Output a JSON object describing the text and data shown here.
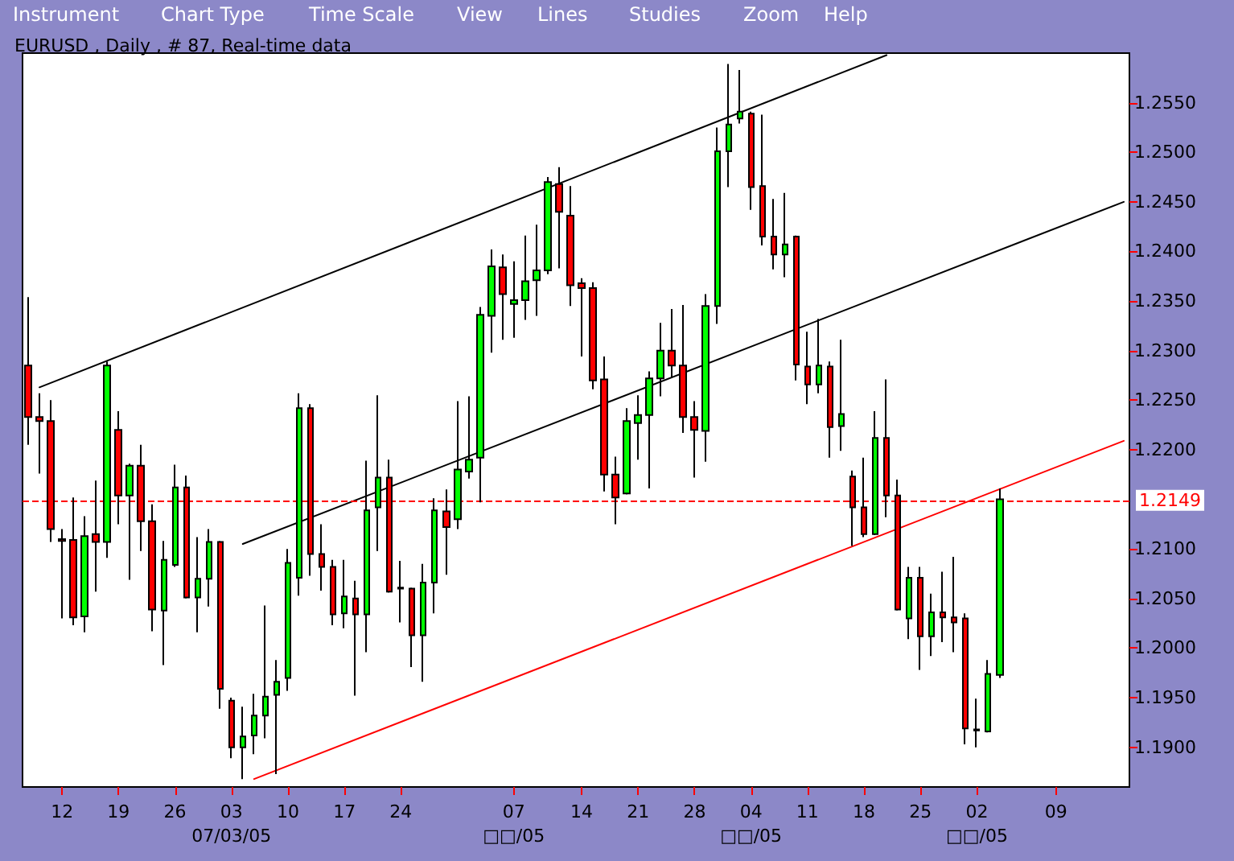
{
  "chart_data": {
    "type": "candlestick",
    "title": "EURUSD , Daily , # 87, Real-time data",
    "annotations": [
      "Instrument",
      "Chart Type",
      "Time Scale",
      "View",
      "Lines",
      "Studies",
      "Zoom",
      "Help"
    ],
    "categories": [
      null,
      null,
      null,
      "12",
      null,
      null,
      null,
      null,
      "19",
      null,
      null,
      null,
      null,
      "26",
      null,
      null,
      null,
      null,
      "03\n07/03/05",
      null,
      null,
      null,
      null,
      "10",
      null,
      null,
      null,
      null,
      "17",
      null,
      null,
      null,
      null,
      "24",
      null,
      null,
      null,
      null,
      null,
      null,
      null,
      null,
      null,
      "07\n□□/05",
      null,
      null,
      null,
      null,
      null,
      "14",
      null,
      null,
      null,
      null,
      "21",
      null,
      null,
      null,
      null,
      "28",
      null,
      null,
      null,
      null,
      "04\n□□/05",
      null,
      null,
      null,
      null,
      "11",
      null,
      null,
      null,
      null,
      "18",
      null,
      null,
      null,
      null,
      "25",
      null,
      null,
      null,
      null,
      "02\n□□/05",
      null,
      null,
      null,
      null,
      null,
      null,
      "09",
      null,
      null,
      null,
      null,
      null,
      null
    ],
    "ohlc": [
      [
        1.2285,
        1.2354,
        1.2205,
        1.2233
      ],
      [
        1.2233,
        1.2257,
        1.2176,
        1.2229
      ],
      [
        1.2229,
        1.225,
        1.2107,
        1.212
      ],
      [
        1.211,
        1.212,
        1.203,
        1.2108
      ],
      [
        1.2109,
        1.2152,
        1.2023,
        1.2031
      ],
      [
        1.2032,
        1.2133,
        1.2016,
        1.2113
      ],
      [
        1.2115,
        1.2169,
        1.2057,
        1.2107
      ],
      [
        1.2107,
        1.2289,
        1.2091,
        1.2285
      ],
      [
        1.222,
        1.2239,
        1.2125,
        1.2154
      ],
      [
        1.2154,
        1.2186,
        1.2069,
        1.2184
      ],
      [
        1.2184,
        1.2205,
        1.2098,
        1.2128
      ],
      [
        1.2128,
        1.2145,
        1.2017,
        1.2039
      ],
      [
        1.2038,
        1.2108,
        1.1983,
        1.2089
      ],
      [
        1.2084,
        1.2185,
        1.2082,
        1.2162
      ],
      [
        1.2162,
        1.2174,
        1.205,
        1.2051
      ],
      [
        1.2051,
        1.2112,
        1.2016,
        1.207
      ],
      [
        1.207,
        1.212,
        1.2042,
        1.2107
      ],
      [
        1.2107,
        1.2108,
        1.1939,
        1.1959
      ],
      [
        1.1947,
        1.195,
        1.1889,
        1.19
      ],
      [
        1.19,
        1.1941,
        1.1868,
        1.1911
      ],
      [
        1.1912,
        1.1954,
        1.1893,
        1.1932
      ],
      [
        1.1932,
        1.2043,
        1.1909,
        1.1951
      ],
      [
        1.1953,
        1.1988,
        1.1873,
        1.1966
      ],
      [
        1.197,
        1.21,
        1.1957,
        1.2086
      ],
      [
        1.2071,
        1.2257,
        1.2053,
        1.2242
      ],
      [
        1.2242,
        1.2246,
        1.2073,
        1.2095
      ],
      [
        1.2095,
        1.2125,
        1.2058,
        1.2082
      ],
      [
        1.2082,
        1.2089,
        1.2023,
        1.2034
      ],
      [
        1.2035,
        1.2089,
        1.202,
        1.2052
      ],
      [
        1.205,
        1.2068,
        1.1952,
        1.2034
      ],
      [
        1.2034,
        1.2189,
        1.1996,
        1.2139
      ],
      [
        1.2142,
        1.2255,
        1.2098,
        1.2172
      ],
      [
        1.2172,
        1.219,
        1.2056,
        1.2057
      ],
      [
        1.2061,
        1.2088,
        1.2026,
        1.206
      ],
      [
        1.206,
        1.2061,
        1.1981,
        1.2013
      ],
      [
        1.2013,
        1.2085,
        1.1966,
        1.2066
      ],
      [
        1.2066,
        1.2151,
        1.2035,
        1.2139
      ],
      [
        1.2138,
        1.216,
        1.2074,
        1.2122
      ],
      [
        1.213,
        1.2249,
        1.212,
        1.218
      ],
      [
        1.2178,
        1.2254,
        1.2171,
        1.219
      ],
      [
        1.2192,
        1.2344,
        1.2147,
        1.2336
      ],
      [
        1.2335,
        1.2402,
        1.2298,
        1.2385
      ],
      [
        1.2384,
        1.2397,
        1.2311,
        1.2357
      ],
      [
        1.2347,
        1.239,
        1.2313,
        1.2351
      ],
      [
        1.2351,
        1.2416,
        1.2331,
        1.237
      ],
      [
        1.2371,
        1.2427,
        1.2335,
        1.2381
      ],
      [
        1.2381,
        1.2475,
        1.2377,
        1.247
      ],
      [
        1.2468,
        1.2485,
        1.2383,
        1.244
      ],
      [
        1.2436,
        1.2466,
        1.2345,
        1.2366
      ],
      [
        1.2368,
        1.2373,
        1.2294,
        1.2363
      ],
      [
        1.2363,
        1.2369,
        1.2261,
        1.227
      ],
      [
        1.2271,
        1.2294,
        1.2158,
        1.2175
      ],
      [
        1.2175,
        1.2193,
        1.2125,
        1.2152
      ],
      [
        1.2156,
        1.2242,
        1.2155,
        1.2229
      ],
      [
        1.2227,
        1.2255,
        1.219,
        1.2235
      ],
      [
        1.2235,
        1.2279,
        1.2161,
        1.2272
      ],
      [
        1.2272,
        1.2328,
        1.2254,
        1.23
      ],
      [
        1.23,
        1.2342,
        1.2273,
        1.2285
      ],
      [
        1.2285,
        1.2346,
        1.2217,
        1.2233
      ],
      [
        1.2233,
        1.2249,
        1.2172,
        1.222
      ],
      [
        1.2219,
        1.2357,
        1.2188,
        1.2345
      ],
      [
        1.2345,
        1.2525,
        1.2327,
        1.2501
      ],
      [
        1.2501,
        1.2589,
        1.2465,
        1.2528
      ],
      [
        1.2534,
        1.2583,
        1.2529,
        1.2541
      ],
      [
        1.2539,
        1.2541,
        1.2442,
        1.2465
      ],
      [
        1.2466,
        1.2538,
        1.2406,
        1.2415
      ],
      [
        1.2415,
        1.2453,
        1.2382,
        1.2397
      ],
      [
        1.2397,
        1.2459,
        1.2374,
        1.2407
      ],
      [
        1.2415,
        1.2416,
        1.227,
        1.2286
      ],
      [
        1.2284,
        1.2319,
        1.2246,
        1.2266
      ],
      [
        1.2266,
        1.2332,
        1.2257,
        1.2285
      ],
      [
        1.2284,
        1.2289,
        1.2192,
        1.2223
      ],
      [
        1.2224,
        1.2311,
        1.2199,
        1.2236
      ],
      [
        1.2173,
        1.2179,
        1.2103,
        1.2142
      ],
      [
        1.2142,
        1.2192,
        1.2112,
        1.2115
      ],
      [
        1.2115,
        1.2239,
        1.2114,
        1.2212
      ],
      [
        1.2212,
        1.2271,
        1.2132,
        1.2154
      ],
      [
        1.2154,
        1.217,
        1.2038,
        1.2039
      ],
      [
        1.203,
        1.2082,
        1.2009,
        1.2071
      ],
      [
        1.2071,
        1.2082,
        1.1978,
        1.2012
      ],
      [
        1.2012,
        1.2055,
        1.1992,
        1.2036
      ],
      [
        1.2036,
        1.2077,
        1.2006,
        1.2031
      ],
      [
        1.2031,
        1.2092,
        1.1996,
        1.2026
      ],
      [
        1.203,
        1.2035,
        1.1903,
        1.1919
      ],
      [
        1.1918,
        1.1949,
        1.19,
        1.1917
      ],
      [
        1.1916,
        1.1988,
        1.1915,
        1.1974
      ],
      [
        1.1973,
        1.2161,
        1.197,
        1.215
      ],
      null,
      null,
      null,
      null,
      null,
      null,
      null,
      null,
      null,
      null,
      null
    ],
    "colors": [
      "#ff0000",
      "#ff0000",
      "#ff0000",
      "#ff0000",
      "#ff0000",
      "#00ff00",
      "#ff0000",
      "#00ff00",
      "#ff0000",
      "#00ff00",
      "#ff0000",
      "#ff0000",
      "#00ff00",
      "#00ff00",
      "#ff0000",
      "#00ff00",
      "#00ff00",
      "#ff0000",
      "#ff0000",
      "#00ff00",
      "#00ff00",
      "#00ff00",
      "#00ff00",
      "#00ff00",
      "#00ff00",
      "#ff0000",
      "#ff0000",
      "#ff0000",
      "#00ff00",
      "#ff0000",
      "#00ff00",
      "#00ff00",
      "#ff0000",
      "#ff0000",
      "#ff0000",
      "#00ff00",
      "#00ff00",
      "#ff0000",
      "#00ff00",
      "#00ff00",
      "#00ff00",
      "#00ff00",
      "#ff0000",
      "#00ff00",
      "#00ff00",
      "#00ff00",
      "#00ff00",
      "#ff0000",
      "#ff0000",
      "#ff0000",
      "#ff0000",
      "#ff0000",
      "#ff0000",
      "#00ff00",
      "#00ff00",
      "#00ff00",
      "#00ff00",
      "#ff0000",
      "#ff0000",
      "#ff0000",
      "#00ff00",
      "#00ff00",
      "#00ff00",
      "#00ff00",
      "#ff0000",
      "#ff0000",
      "#ff0000",
      "#00ff00",
      "#ff0000",
      "#ff0000",
      "#00ff00",
      "#ff0000",
      "#00ff00",
      "#ff0000",
      "#ff0000",
      "#00ff00",
      "#ff0000",
      "#ff0000",
      "#00ff00",
      "#ff0000",
      "#00ff00",
      "#ff0000",
      "#ff0000",
      "#ff0000",
      "#ff0000",
      "#00ff00",
      "#00ff00",
      null,
      null,
      null,
      null,
      null,
      null,
      null,
      null,
      null,
      null,
      null
    ],
    "series": [
      {
        "type": "line",
        "color": "#000000",
        "values": [
          null,
          1.2263,
          null,
          null,
          null,
          null,
          null,
          null,
          null,
          null,
          null,
          null,
          null,
          null,
          null,
          null,
          null,
          null,
          null,
          null,
          null,
          null,
          null,
          null,
          null,
          null,
          null,
          null,
          null,
          null,
          null,
          null,
          null,
          null,
          null,
          null,
          null,
          null,
          null,
          null,
          null,
          null,
          null,
          null,
          null,
          null,
          null,
          null,
          null,
          null,
          null,
          null,
          null,
          null,
          null,
          null,
          null,
          null,
          null,
          null,
          null,
          null,
          null,
          null,
          null,
          null,
          null,
          null,
          null,
          null,
          null,
          null,
          null,
          null,
          null,
          null,
          1.2598,
          null,
          null,
          null,
          null,
          null,
          null,
          null,
          null,
          null,
          null,
          null,
          null,
          null,
          null,
          null,
          null,
          null,
          null,
          null,
          null,
          null
        ]
      },
      {
        "type": "line",
        "color": "#000000",
        "values": [
          null,
          null,
          null,
          null,
          null,
          null,
          null,
          null,
          null,
          null,
          null,
          null,
          null,
          null,
          null,
          null,
          null,
          null,
          null,
          1.2105,
          null,
          null,
          null,
          null,
          null,
          null,
          null,
          null,
          null,
          null,
          null,
          null,
          null,
          null,
          null,
          null,
          null,
          null,
          null,
          null,
          null,
          null,
          null,
          null,
          null,
          null,
          null,
          null,
          null,
          null,
          null,
          null,
          null,
          null,
          null,
          null,
          null,
          null,
          null,
          null,
          null,
          null,
          null,
          null,
          null,
          null,
          null,
          null,
          null,
          null,
          null,
          null,
          null,
          null,
          null,
          null,
          null,
          null,
          null,
          null,
          null,
          null,
          null,
          null,
          null,
          null,
          null,
          null,
          null,
          null,
          null,
          null,
          null,
          null,
          null,
          null,
          null,
          1.245
        ]
      },
      {
        "type": "line",
        "color": "#ff0000",
        "values": [
          null,
          null,
          null,
          null,
          null,
          null,
          null,
          null,
          null,
          null,
          null,
          null,
          null,
          null,
          null,
          null,
          null,
          null,
          null,
          null,
          1.1868,
          null,
          null,
          null,
          null,
          null,
          null,
          null,
          null,
          null,
          null,
          null,
          null,
          null,
          null,
          null,
          null,
          null,
          null,
          null,
          null,
          null,
          null,
          null,
          null,
          null,
          null,
          null,
          null,
          null,
          null,
          null,
          null,
          null,
          null,
          null,
          null,
          null,
          null,
          null,
          null,
          null,
          null,
          null,
          null,
          null,
          null,
          null,
          null,
          null,
          null,
          null,
          null,
          null,
          null,
          null,
          null,
          null,
          null,
          null,
          null,
          null,
          null,
          null,
          null,
          null,
          null,
          null,
          null,
          null,
          null,
          null,
          null,
          null,
          null,
          null,
          null,
          1.2209
        ]
      }
    ],
    "marker": "none",
    "line_style": "solid",
    "ylim": [
      1.186,
      1.26
    ],
    "yticks": [
      {
        "value": 1.19,
        "label": "1.1900"
      },
      {
        "value": 1.195,
        "label": "1.1950"
      },
      {
        "value": 1.2,
        "label": "1.2000"
      },
      {
        "value": 1.205,
        "label": "1.2050"
      },
      {
        "value": 1.21,
        "label": "1.2100"
      },
      {
        "value": 1.22,
        "label": "1.2200"
      },
      {
        "value": 1.225,
        "label": "1.2250"
      },
      {
        "value": 1.23,
        "label": "1.2300"
      },
      {
        "value": 1.235,
        "label": "1.2350"
      },
      {
        "value": 1.24,
        "label": "1.2400"
      },
      {
        "value": 1.245,
        "label": "1.2450"
      },
      {
        "value": 1.25,
        "label": "1.2500"
      },
      {
        "value": 1.255,
        "label": "1.2550"
      }
    ],
    "ref_lines": [
      {
        "axis": "y",
        "value": 1.2149,
        "label": "1.2149",
        "color": "#ff0000",
        "line_style": "dashed"
      }
    ],
    "grid": false
  }
}
